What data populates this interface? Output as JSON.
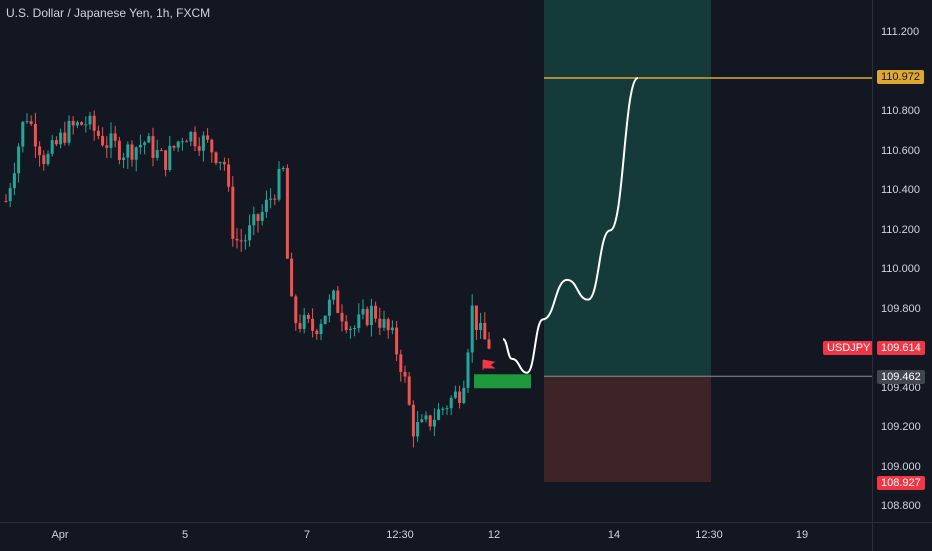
{
  "legend": {
    "title": "U.S. Dollar / Japanese Yen, 1h, FXCM"
  },
  "symbol_tag": "USDJPY",
  "price_axis": {
    "ticks": [
      "111.200",
      "110.800",
      "110.600",
      "110.400",
      "110.200",
      "110.000",
      "109.800",
      "109.400",
      "109.200",
      "109.000",
      "108.800"
    ],
    "badges": {
      "take_profit": "110.972",
      "last_price": "109.614",
      "entry": "109.462",
      "stop_loss": "108.927"
    }
  },
  "time_axis": {
    "ticks": [
      "Apr",
      "5",
      "7",
      "12:30",
      "12",
      "14",
      "12:30",
      "19"
    ]
  },
  "colors": {
    "background": "#131722",
    "bull": "#26a69a",
    "bear": "#ef5350",
    "target_zone": "#153a3a",
    "stop_zone": "#3e2427",
    "target_line": "#e0a82e",
    "entry_zone_marker": "#1e9a3c",
    "flag": "#f23645"
  },
  "chart_data": {
    "type": "line",
    "instrument": "USD/JPY",
    "x": [
      0,
      20,
      40,
      60,
      80,
      100,
      120,
      140,
      160,
      180,
      200,
      220,
      230,
      240,
      260,
      280,
      285,
      290,
      310,
      330,
      350,
      370,
      390,
      400,
      410,
      420,
      440,
      460,
      470,
      480,
      490
    ],
    "values": [
      110.35,
      110.8,
      110.55,
      110.7,
      110.75,
      110.65,
      110.6,
      110.65,
      110.55,
      110.7,
      110.65,
      110.55,
      110.15,
      110.15,
      110.3,
      110.5,
      109.9,
      109.75,
      109.7,
      109.85,
      109.7,
      109.8,
      109.65,
      109.5,
      109.2,
      109.2,
      109.3,
      109.4,
      109.8,
      109.65,
      109.614
    ],
    "projection": [
      109.65,
      109.55,
      109.48,
      109.75,
      109.95,
      109.85,
      110.2,
      110.972
    ],
    "levels": {
      "take_profit": 110.972,
      "entry": 109.462,
      "stop_loss": 108.927,
      "last": 109.614
    },
    "ylim": [
      108.75,
      111.35
    ],
    "grid": false,
    "legend_position": "top-left"
  }
}
